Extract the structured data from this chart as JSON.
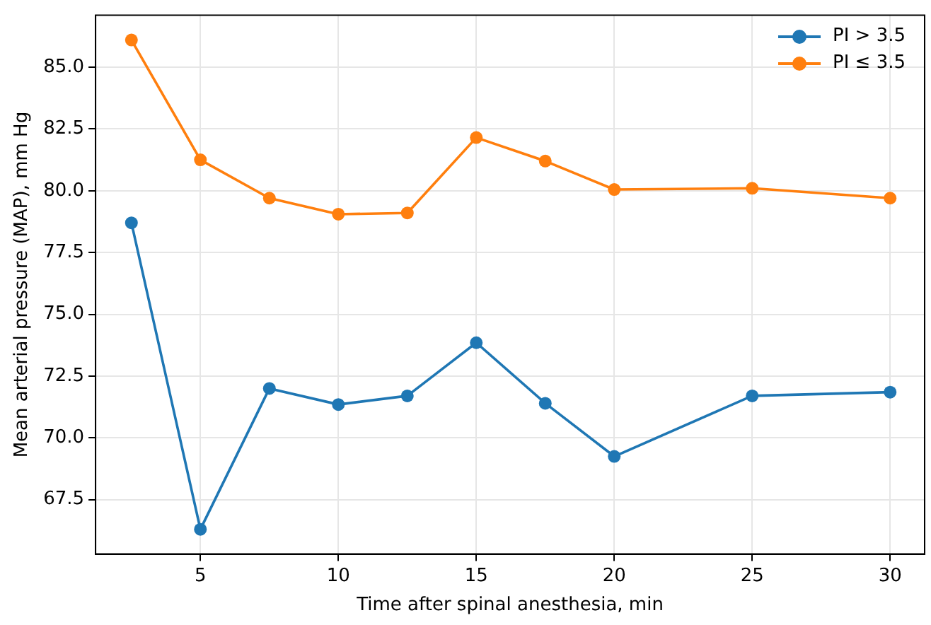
{
  "chart_data": {
    "type": "line",
    "xlabel": "Time after spinal anesthesia, min",
    "ylabel": "Mean arterial pressure (MAP), mm Hg",
    "x": [
      2.5,
      5,
      7.5,
      10,
      12.5,
      15,
      17.5,
      20,
      25,
      30
    ],
    "series": [
      {
        "name": "PI > 3.5",
        "color": "#1f77b4",
        "values": [
          78.7,
          66.3,
          72.0,
          71.35,
          71.7,
          73.85,
          71.4,
          69.25,
          71.7,
          71.85
        ]
      },
      {
        "name": "PI ≤ 3.5",
        "color": "#ff7f0e",
        "values": [
          86.1,
          81.25,
          79.7,
          79.05,
          79.1,
          82.15,
          81.2,
          80.05,
          80.1,
          79.7
        ]
      }
    ],
    "xlim": [
      1.2,
      31.25
    ],
    "ylim": [
      65.3,
      87.1
    ],
    "xticks": [
      5,
      10,
      15,
      20,
      25,
      30
    ],
    "yticks": [
      67.5,
      {
        "value": 70,
        "label": "70.0"
      },
      72.5,
      {
        "value": 75,
        "label": "75.0"
      },
      77.5,
      {
        "value": 80,
        "label": "80.0"
      },
      82.5,
      {
        "value": 85,
        "label": "85.0"
      }
    ],
    "grid": true,
    "legend": "top right",
    "marker": "circle",
    "line_style": "solid"
  }
}
